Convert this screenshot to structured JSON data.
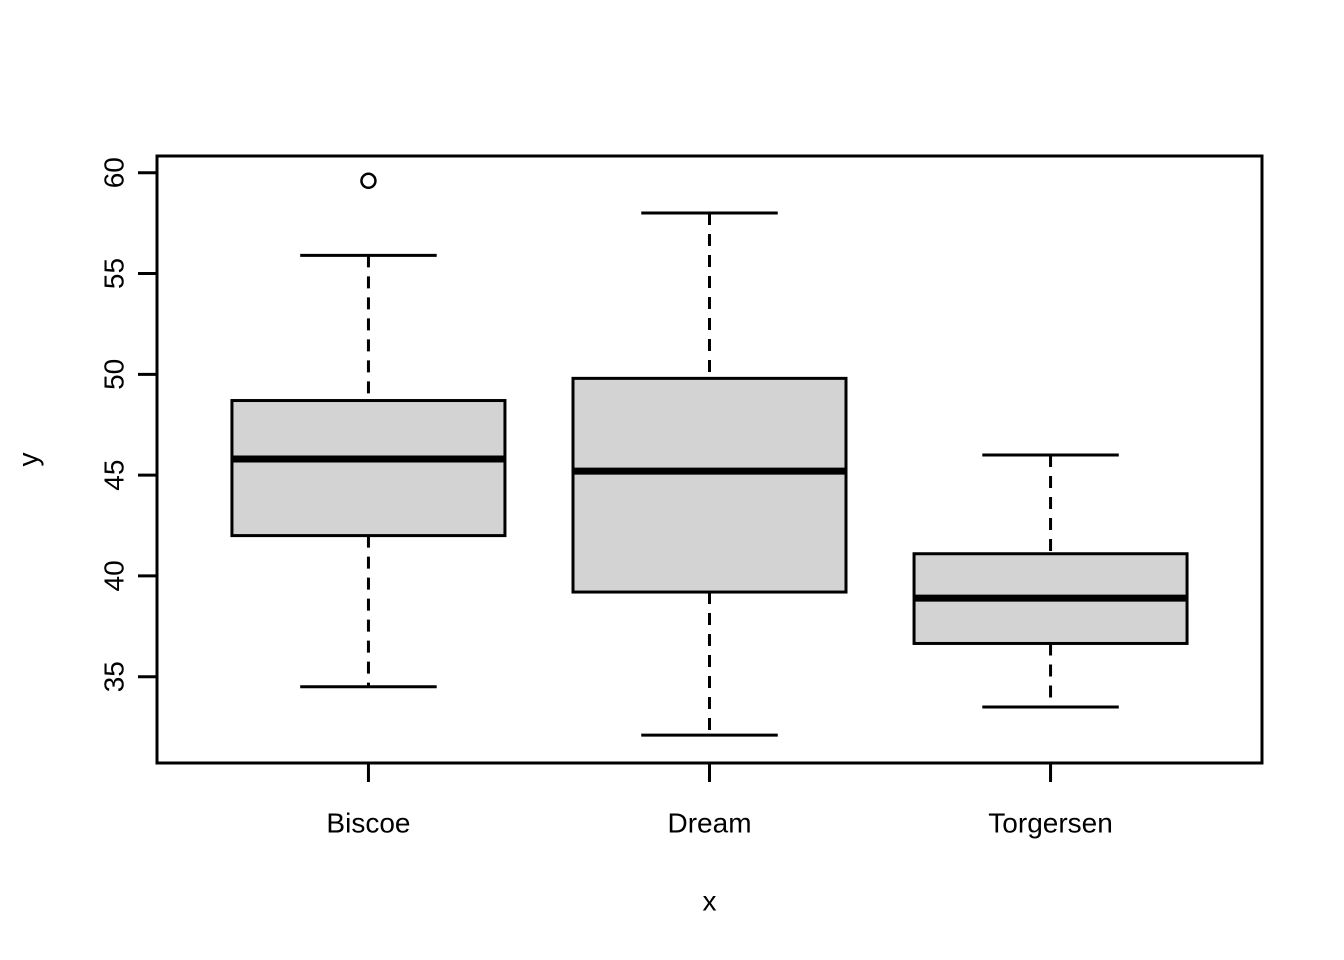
{
  "chart_data": {
    "type": "boxplot",
    "title": "",
    "xlabel": "x",
    "ylabel": "y",
    "categories": [
      "Biscoe",
      "Dream",
      "Torgersen"
    ],
    "series": [
      {
        "name": "Biscoe",
        "whisker_low": 34.5,
        "q1": 42.0,
        "median": 45.8,
        "q3": 48.7,
        "whisker_high": 55.9,
        "outliers": [
          59.6
        ]
      },
      {
        "name": "Dream",
        "whisker_low": 32.1,
        "q1": 39.2,
        "median": 45.2,
        "q3": 49.8,
        "whisker_high": 58.0,
        "outliers": []
      },
      {
        "name": "Torgersen",
        "whisker_low": 33.5,
        "q1": 36.65,
        "median": 38.9,
        "q3": 41.1,
        "whisker_high": 46.0,
        "outliers": []
      }
    ],
    "y_ticks": [
      35,
      40,
      45,
      50,
      55,
      60
    ],
    "ylim": [
      30.72,
      60.83
    ],
    "x_positions": [
      1,
      2,
      3
    ],
    "xlim": [
      0.38,
      3.62
    ],
    "grid": false,
    "legend": null,
    "colors": {
      "box_fill": "#d3d3d3",
      "line": "#000000",
      "background": "#ffffff"
    }
  }
}
